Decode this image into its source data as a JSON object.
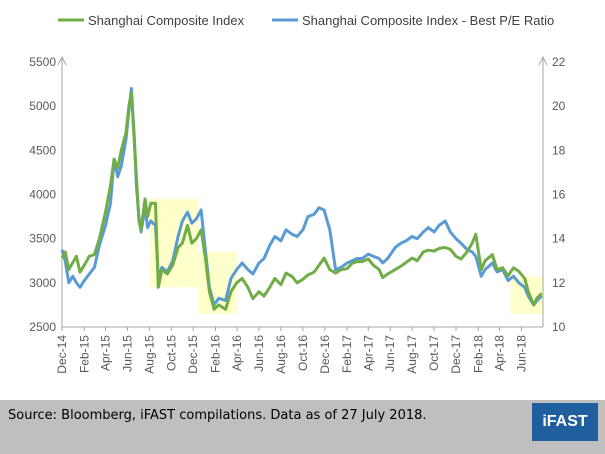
{
  "chart_data": {
    "type": "line",
    "title": "",
    "legend": {
      "placement": "top",
      "entries": [
        "Shanghai Composite Index",
        "Shanghai Composite Index - Best P/E Ratio"
      ]
    },
    "y_left": {
      "min": 2500,
      "max": 5500,
      "ticks": [
        "2500",
        "3000",
        "3500",
        "4000",
        "4500",
        "5000",
        "5500"
      ]
    },
    "y_right": {
      "min": 10,
      "max": 22,
      "ticks": [
        "10",
        "12",
        "14",
        "16",
        "18",
        "20",
        "22"
      ]
    },
    "x_ticks": [
      "Dec-14",
      "Feb-15",
      "Apr-15",
      "Jun-15",
      "Aug-15",
      "Oct-15",
      "Dec-15",
      "Feb-16",
      "Apr-16",
      "Jun-16",
      "Aug-16",
      "Oct-16",
      "Dec-16",
      "Feb-17",
      "Apr-17",
      "Jun-17",
      "Aug-17",
      "Oct-17",
      "Dec-17",
      "Feb-18",
      "Apr-18",
      "Jun-18"
    ],
    "x_range": [
      "2014-12-01",
      "2018-07-31"
    ],
    "highlight_periods": [
      {
        "start": "2015-08-01",
        "end": "2015-12-15",
        "y_low": 2950,
        "y_high": 3950
      },
      {
        "start": "2015-12-15",
        "end": "2016-03-31",
        "y_low": 2650,
        "y_high": 3350
      },
      {
        "start": "2018-05-01",
        "end": "2018-07-31",
        "y_low": 2650,
        "y_high": 3070
      }
    ],
    "series": [
      {
        "name": "Shanghai Composite Index",
        "color": "#70ad47",
        "axis": "left",
        "points": [
          [
            "2014-12-01",
            3280
          ],
          [
            "2014-12-10",
            3350
          ],
          [
            "2014-12-20",
            3150
          ],
          [
            "2014-12-31",
            3230
          ],
          [
            "2015-01-10",
            3300
          ],
          [
            "2015-01-20",
            3120
          ],
          [
            "2015-02-01",
            3200
          ],
          [
            "2015-02-15",
            3300
          ],
          [
            "2015-03-01",
            3320
          ],
          [
            "2015-03-15",
            3500
          ],
          [
            "2015-04-01",
            3800
          ],
          [
            "2015-04-15",
            4100
          ],
          [
            "2015-04-25",
            4400
          ],
          [
            "2015-05-05",
            4300
          ],
          [
            "2015-05-15",
            4500
          ],
          [
            "2015-05-28",
            4700
          ],
          [
            "2015-06-05",
            5000
          ],
          [
            "2015-06-12",
            5150
          ],
          [
            "2015-06-20",
            4600
          ],
          [
            "2015-06-26",
            4200
          ],
          [
            "2015-07-03",
            3700
          ],
          [
            "2015-07-09",
            3600
          ],
          [
            "2015-07-20",
            3950
          ],
          [
            "2015-07-27",
            3750
          ],
          [
            "2015-08-05",
            3900
          ],
          [
            "2015-08-18",
            3900
          ],
          [
            "2015-08-26",
            2950
          ],
          [
            "2015-09-05",
            3150
          ],
          [
            "2015-09-20",
            3100
          ],
          [
            "2015-10-05",
            3200
          ],
          [
            "2015-10-20",
            3400
          ],
          [
            "2015-11-01",
            3450
          ],
          [
            "2015-11-15",
            3650
          ],
          [
            "2015-11-27",
            3450
          ],
          [
            "2015-12-10",
            3500
          ],
          [
            "2015-12-23",
            3600
          ],
          [
            "2016-01-05",
            3250
          ],
          [
            "2016-01-15",
            2900
          ],
          [
            "2016-01-28",
            2700
          ],
          [
            "2016-02-10",
            2750
          ],
          [
            "2016-02-29",
            2700
          ],
          [
            "2016-03-15",
            2900
          ],
          [
            "2016-03-31",
            3000
          ],
          [
            "2016-04-15",
            3050
          ],
          [
            "2016-05-01",
            2950
          ],
          [
            "2016-05-15",
            2820
          ],
          [
            "2016-06-01",
            2900
          ],
          [
            "2016-06-15",
            2850
          ],
          [
            "2016-07-01",
            2950
          ],
          [
            "2016-07-15",
            3050
          ],
          [
            "2016-08-01",
            2980
          ],
          [
            "2016-08-15",
            3110
          ],
          [
            "2016-09-01",
            3070
          ],
          [
            "2016-09-15",
            3000
          ],
          [
            "2016-10-01",
            3040
          ],
          [
            "2016-10-15",
            3090
          ],
          [
            "2016-11-01",
            3120
          ],
          [
            "2016-11-15",
            3200
          ],
          [
            "2016-11-29",
            3280
          ],
          [
            "2016-12-15",
            3150
          ],
          [
            "2016-12-31",
            3110
          ],
          [
            "2017-01-15",
            3150
          ],
          [
            "2017-02-01",
            3160
          ],
          [
            "2017-02-15",
            3220
          ],
          [
            "2017-03-01",
            3240
          ],
          [
            "2017-03-15",
            3240
          ],
          [
            "2017-04-01",
            3270
          ],
          [
            "2017-04-15",
            3200
          ],
          [
            "2017-05-01",
            3150
          ],
          [
            "2017-05-11",
            3060
          ],
          [
            "2017-05-25",
            3100
          ],
          [
            "2017-06-15",
            3150
          ],
          [
            "2017-07-01",
            3190
          ],
          [
            "2017-07-15",
            3230
          ],
          [
            "2017-08-01",
            3280
          ],
          [
            "2017-08-15",
            3250
          ],
          [
            "2017-09-01",
            3350
          ],
          [
            "2017-09-15",
            3370
          ],
          [
            "2017-10-01",
            3360
          ],
          [
            "2017-10-15",
            3390
          ],
          [
            "2017-11-01",
            3400
          ],
          [
            "2017-11-15",
            3380
          ],
          [
            "2017-12-01",
            3300
          ],
          [
            "2017-12-15",
            3270
          ],
          [
            "2018-01-01",
            3350
          ],
          [
            "2018-01-15",
            3450
          ],
          [
            "2018-01-25",
            3550
          ],
          [
            "2018-02-09",
            3150
          ],
          [
            "2018-02-20",
            3250
          ],
          [
            "2018-03-12",
            3320
          ],
          [
            "2018-03-25",
            3150
          ],
          [
            "2018-04-10",
            3170
          ],
          [
            "2018-04-25",
            3080
          ],
          [
            "2018-05-10",
            3170
          ],
          [
            "2018-05-25",
            3130
          ],
          [
            "2018-06-10",
            3050
          ],
          [
            "2018-06-20",
            2900
          ],
          [
            "2018-07-05",
            2750
          ],
          [
            "2018-07-15",
            2830
          ],
          [
            "2018-07-27",
            2880
          ]
        ]
      },
      {
        "name": "Shanghai Composite Index - Best P/E Ratio",
        "color": "#5b9bd5",
        "axis": "right",
        "points": [
          [
            "2014-12-01",
            13.5
          ],
          [
            "2014-12-10",
            13.0
          ],
          [
            "2014-12-20",
            12.0
          ],
          [
            "2014-12-31",
            12.3
          ],
          [
            "2015-01-10",
            12.0
          ],
          [
            "2015-01-20",
            11.8
          ],
          [
            "2015-02-01",
            12.1
          ],
          [
            "2015-02-15",
            12.4
          ],
          [
            "2015-03-01",
            12.7
          ],
          [
            "2015-03-15",
            13.7
          ],
          [
            "2015-04-01",
            14.6
          ],
          [
            "2015-04-15",
            15.6
          ],
          [
            "2015-04-25",
            17.6
          ],
          [
            "2015-05-05",
            16.8
          ],
          [
            "2015-05-15",
            17.3
          ],
          [
            "2015-05-28",
            18.5
          ],
          [
            "2015-06-05",
            19.8
          ],
          [
            "2015-06-12",
            20.8
          ],
          [
            "2015-06-20",
            18.6
          ],
          [
            "2015-06-26",
            16.4
          ],
          [
            "2015-07-03",
            15.0
          ],
          [
            "2015-07-09",
            14.3
          ],
          [
            "2015-07-20",
            15.4
          ],
          [
            "2015-07-27",
            14.5
          ],
          [
            "2015-08-05",
            14.8
          ],
          [
            "2015-08-18",
            14.6
          ],
          [
            "2015-08-26",
            12.2
          ],
          [
            "2015-09-05",
            12.7
          ],
          [
            "2015-09-20",
            12.5
          ],
          [
            "2015-10-05",
            13.0
          ],
          [
            "2015-10-20",
            14.1
          ],
          [
            "2015-11-01",
            14.8
          ],
          [
            "2015-11-15",
            15.2
          ],
          [
            "2015-11-27",
            14.7
          ],
          [
            "2015-12-10",
            14.9
          ],
          [
            "2015-12-23",
            15.3
          ],
          [
            "2016-01-05",
            13.3
          ],
          [
            "2016-01-15",
            11.8
          ],
          [
            "2016-01-28",
            11.0
          ],
          [
            "2016-02-10",
            11.3
          ],
          [
            "2016-02-29",
            11.2
          ],
          [
            "2016-03-15",
            12.2
          ],
          [
            "2016-03-31",
            12.6
          ],
          [
            "2016-04-15",
            12.9
          ],
          [
            "2016-05-01",
            12.6
          ],
          [
            "2016-05-15",
            12.4
          ],
          [
            "2016-06-01",
            12.9
          ],
          [
            "2016-06-15",
            13.1
          ],
          [
            "2016-07-01",
            13.7
          ],
          [
            "2016-07-15",
            14.1
          ],
          [
            "2016-08-01",
            13.9
          ],
          [
            "2016-08-15",
            14.4
          ],
          [
            "2016-09-01",
            14.2
          ],
          [
            "2016-09-15",
            14.1
          ],
          [
            "2016-10-01",
            14.4
          ],
          [
            "2016-10-15",
            15.0
          ],
          [
            "2016-11-01",
            15.1
          ],
          [
            "2016-11-15",
            15.4
          ],
          [
            "2016-11-29",
            15.3
          ],
          [
            "2016-12-15",
            14.4
          ],
          [
            "2016-12-31",
            12.6
          ],
          [
            "2017-01-15",
            12.7
          ],
          [
            "2017-02-01",
            12.9
          ],
          [
            "2017-02-15",
            13.0
          ],
          [
            "2017-03-01",
            13.1
          ],
          [
            "2017-03-15",
            13.1
          ],
          [
            "2017-04-01",
            13.3
          ],
          [
            "2017-04-15",
            13.2
          ],
          [
            "2017-05-01",
            13.1
          ],
          [
            "2017-05-11",
            12.9
          ],
          [
            "2017-05-25",
            13.1
          ],
          [
            "2017-06-15",
            13.6
          ],
          [
            "2017-07-01",
            13.8
          ],
          [
            "2017-07-15",
            13.9
          ],
          [
            "2017-08-01",
            14.1
          ],
          [
            "2017-08-15",
            14.0
          ],
          [
            "2017-09-01",
            14.3
          ],
          [
            "2017-09-15",
            14.5
          ],
          [
            "2017-10-01",
            14.3
          ],
          [
            "2017-10-15",
            14.6
          ],
          [
            "2017-11-01",
            14.8
          ],
          [
            "2017-11-15",
            14.3
          ],
          [
            "2017-12-01",
            14.0
          ],
          [
            "2017-12-15",
            13.8
          ],
          [
            "2018-01-01",
            13.5
          ],
          [
            "2018-01-15",
            13.4
          ],
          [
            "2018-01-25",
            13.2
          ],
          [
            "2018-02-09",
            12.3
          ],
          [
            "2018-02-20",
            12.6
          ],
          [
            "2018-03-12",
            12.9
          ],
          [
            "2018-03-25",
            12.5
          ],
          [
            "2018-04-10",
            12.6
          ],
          [
            "2018-04-25",
            12.1
          ],
          [
            "2018-05-10",
            12.3
          ],
          [
            "2018-05-25",
            12.0
          ],
          [
            "2018-06-10",
            11.8
          ],
          [
            "2018-06-20",
            11.4
          ],
          [
            "2018-07-05",
            11.0
          ],
          [
            "2018-07-15",
            11.2
          ],
          [
            "2018-07-27",
            11.4
          ]
        ]
      }
    ]
  },
  "footer": {
    "source": "Source: Bloomberg, iFAST compilations. Data as of 27 July 2018.",
    "logo_text": "iFAST",
    "background_color": "#bfbfbf",
    "logo_color": "#1f5f9e"
  }
}
